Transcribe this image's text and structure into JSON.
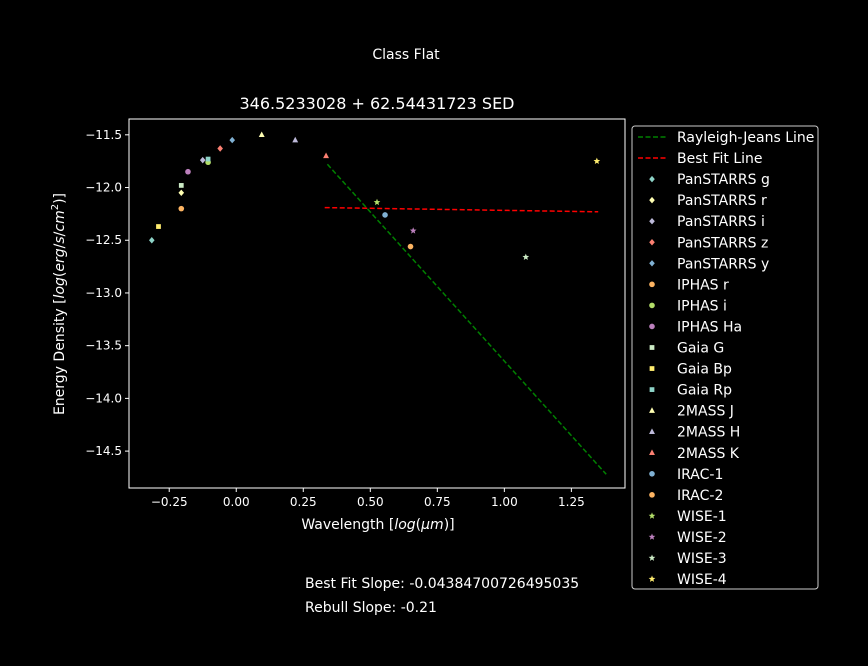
{
  "figure": {
    "suptitle": "Class Flat",
    "footer": {
      "best_fit_slope": "Best Fit Slope: -0.04384700726495035",
      "rebull_slope": "Rebull Slope: -0.21"
    }
  },
  "chart_data": {
    "type": "scatter",
    "title": "346.5233028 + 62.54431723 SED",
    "xlabel": "Wavelength [log(μm)]",
    "ylabel": "Energy Density [log(erg/s/cm²)]",
    "xlim": [
      -0.4,
      1.45
    ],
    "ylim": [
      -14.85,
      -11.35
    ],
    "xticks": [
      -0.25,
      0.0,
      0.25,
      0.5,
      0.75,
      1.0,
      1.25
    ],
    "xtick_labels": [
      "−0.25",
      "0.00",
      "0.25",
      "0.50",
      "0.75",
      "1.00",
      "1.25"
    ],
    "yticks": [
      -11.5,
      -12.0,
      -12.5,
      -13.0,
      -13.5,
      -14.0,
      -14.5
    ],
    "ytick_labels": [
      "−11.5",
      "−12.0",
      "−12.5",
      "−13.0",
      "−13.5",
      "−14.0",
      "−14.5"
    ],
    "grid": false,
    "legend_position": "outside-right",
    "lines": [
      {
        "name": "Rayleigh-Jeans Line",
        "color": "#008000",
        "style": "dashed",
        "x": [
          0.34,
          1.38
        ],
        "y": [
          -11.78,
          -14.72
        ]
      },
      {
        "name": "Best Fit Line",
        "color": "#ff0000",
        "style": "dashed",
        "x": [
          0.33,
          1.35
        ],
        "y": [
          -12.19,
          -12.23
        ]
      }
    ],
    "series": [
      {
        "name": "PanSTARRS g",
        "color": "#8dd3c7",
        "marker": "diamond",
        "x": [
          -0.315
        ],
        "y": [
          -12.5
        ]
      },
      {
        "name": "PanSTARRS r",
        "color": "#ffffb3",
        "marker": "diamond",
        "x": [
          -0.205
        ],
        "y": [
          -12.05
        ]
      },
      {
        "name": "PanSTARRS i",
        "color": "#bebada",
        "marker": "diamond",
        "x": [
          -0.125
        ],
        "y": [
          -11.74
        ]
      },
      {
        "name": "PanSTARRS z",
        "color": "#fb8072",
        "marker": "diamond",
        "x": [
          -0.06
        ],
        "y": [
          -11.63
        ]
      },
      {
        "name": "PanSTARRS y",
        "color": "#80b1d3",
        "marker": "diamond",
        "x": [
          -0.015
        ],
        "y": [
          -11.55
        ]
      },
      {
        "name": "IPHAS r",
        "color": "#fdb462",
        "marker": "circle",
        "x": [
          -0.205
        ],
        "y": [
          -12.2
        ]
      },
      {
        "name": "IPHAS i",
        "color": "#b3de69",
        "marker": "circle",
        "x": [
          -0.105
        ],
        "y": [
          -11.76
        ]
      },
      {
        "name": "IPHAS Ha",
        "color": "#bc80bd",
        "marker": "circle",
        "x": [
          -0.18
        ],
        "y": [
          -11.85
        ]
      },
      {
        "name": "Gaia G",
        "color": "#ccebc5",
        "marker": "square",
        "x": [
          -0.205
        ],
        "y": [
          -11.98
        ]
      },
      {
        "name": "Gaia Bp",
        "color": "#ffed6f",
        "marker": "square",
        "x": [
          -0.29
        ],
        "y": [
          -12.37
        ]
      },
      {
        "name": "Gaia Rp",
        "color": "#8dd3c7",
        "marker": "square",
        "x": [
          -0.105
        ],
        "y": [
          -11.73
        ]
      },
      {
        "name": "2MASS J",
        "color": "#ffffb3",
        "marker": "triangle",
        "x": [
          0.095
        ],
        "y": [
          -11.5
        ]
      },
      {
        "name": "2MASS H",
        "color": "#bebada",
        "marker": "triangle",
        "x": [
          0.22
        ],
        "y": [
          -11.55
        ]
      },
      {
        "name": "2MASS K",
        "color": "#fb8072",
        "marker": "triangle",
        "x": [
          0.335
        ],
        "y": [
          -11.7
        ]
      },
      {
        "name": "IRAC-1",
        "color": "#80b1d3",
        "marker": "circle",
        "x": [
          0.555
        ],
        "y": [
          -12.26
        ]
      },
      {
        "name": "IRAC-2",
        "color": "#fdb462",
        "marker": "circle",
        "x": [
          0.65
        ],
        "y": [
          -12.56
        ]
      },
      {
        "name": "WISE-1",
        "color": "#b3de69",
        "marker": "star",
        "x": [
          0.525
        ],
        "y": [
          -12.14
        ]
      },
      {
        "name": "WISE-2",
        "color": "#bc80bd",
        "marker": "star",
        "x": [
          0.66
        ],
        "y": [
          -12.41
        ]
      },
      {
        "name": "WISE-3",
        "color": "#ccebc5",
        "marker": "star",
        "x": [
          1.08
        ],
        "y": [
          -12.66
        ]
      },
      {
        "name": "WISE-4",
        "color": "#ffed6f",
        "marker": "star",
        "x": [
          1.345
        ],
        "y": [
          -11.75
        ]
      }
    ]
  }
}
